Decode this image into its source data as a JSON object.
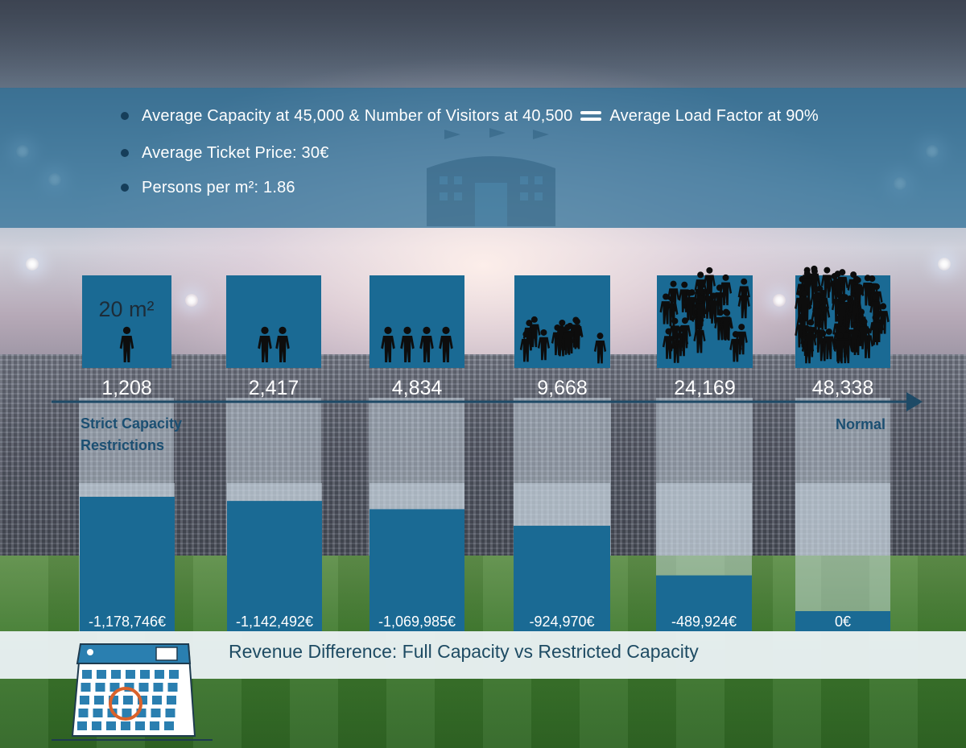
{
  "info": {
    "bullets": [
      {
        "before": "Average Capacity at 45,000 & Number of Visitors at 40,500",
        "after": "Average Load Factor at 90%"
      },
      {
        "text": "Average Ticket Price: 30€"
      },
      {
        "text": "Persons per m²: 1.86"
      }
    ]
  },
  "density_square_label": "20 m²",
  "axis": {
    "left_label_line1": "Strict Capacity",
    "left_label_line2": "Restrictions",
    "right_label": "Normal"
  },
  "caption": "Revenue Difference: Full Capacity vs Restricted Capacity",
  "colors": {
    "bar": "#1a6a94",
    "panel": "rgba(210,225,235,0.45)",
    "figure": "#0d0d0d",
    "caption_text": "#1e4b63",
    "calendar_accent": "#d9622b"
  },
  "chart_data": [
    {
      "type": "pictograph",
      "categories": [
        "1,208",
        "2,417",
        "4,834",
        "9,668",
        "24,169",
        "48,338"
      ],
      "values": [
        1208,
        2417,
        4834,
        9668,
        24169,
        48338
      ],
      "persons_per_20m2": [
        1,
        2,
        4,
        12,
        30,
        60
      ],
      "value_labels": [
        "1,208",
        "2,417",
        "4,834",
        "9,668",
        "24,169",
        "48,338"
      ]
    },
    {
      "type": "bar",
      "title": "Revenue Difference: Full Capacity vs Restricted Capacity",
      "categories": [
        "1,208",
        "2,417",
        "4,834",
        "9,668",
        "24,169",
        "48,338"
      ],
      "values": [
        -1178746,
        -1142492,
        -1069985,
        -924970,
        -489924,
        0
      ],
      "value_labels": [
        "-1,178,746€",
        "-1,142,492€",
        "-1,069,985€",
        "-924,970€",
        "-489,924€",
        "0€"
      ],
      "ylim": [
        -1178746,
        0
      ],
      "grid": false,
      "legend": "none"
    }
  ]
}
